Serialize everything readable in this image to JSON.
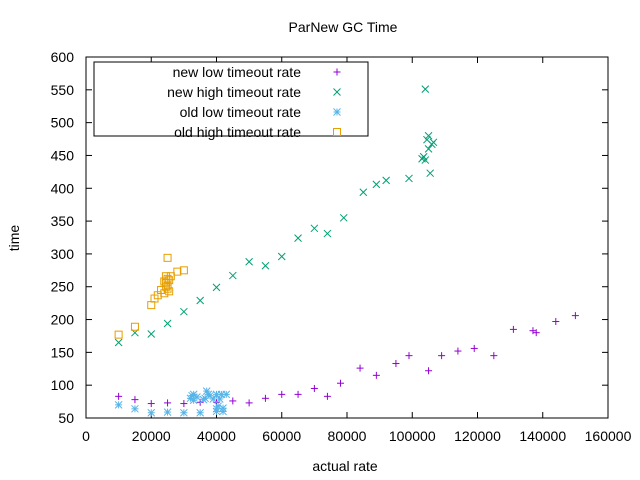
{
  "chart_data": {
    "type": "scatter",
    "title": "ParNew GC Time",
    "xlabel": "actual rate",
    "ylabel": "time",
    "xlim": [
      0,
      160000
    ],
    "ylim": [
      50,
      600
    ],
    "xticks": [
      0,
      20000,
      40000,
      60000,
      80000,
      100000,
      120000,
      140000,
      160000
    ],
    "yticks": [
      50,
      100,
      150,
      200,
      250,
      300,
      350,
      400,
      450,
      500,
      550,
      600
    ],
    "grid": false,
    "legend_position": "top-left",
    "series": [
      {
        "name": "new low timeout rate",
        "marker": "plus",
        "color": "#9400d3",
        "points": [
          [
            10000,
            83
          ],
          [
            15000,
            78
          ],
          [
            20000,
            72
          ],
          [
            25000,
            73
          ],
          [
            30000,
            72
          ],
          [
            35000,
            74
          ],
          [
            40000,
            74
          ],
          [
            45000,
            76
          ],
          [
            50000,
            73
          ],
          [
            55000,
            80
          ],
          [
            60000,
            86
          ],
          [
            65000,
            86
          ],
          [
            70000,
            95
          ],
          [
            74000,
            83
          ],
          [
            78000,
            103
          ],
          [
            84000,
            126
          ],
          [
            89000,
            115
          ],
          [
            95000,
            133
          ],
          [
            99000,
            145
          ],
          [
            105000,
            122
          ],
          [
            109000,
            145
          ],
          [
            114000,
            152
          ],
          [
            119000,
            156
          ],
          [
            125000,
            145
          ],
          [
            131000,
            185
          ],
          [
            137000,
            183
          ],
          [
            138000,
            180
          ],
          [
            144000,
            197
          ],
          [
            150000,
            206
          ]
        ]
      },
      {
        "name": "new high timeout rate",
        "marker": "cross",
        "color": "#009e73",
        "points": [
          [
            10000,
            165
          ],
          [
            15000,
            180
          ],
          [
            20000,
            178
          ],
          [
            25000,
            194
          ],
          [
            30000,
            212
          ],
          [
            35000,
            229
          ],
          [
            40000,
            249
          ],
          [
            45000,
            267
          ],
          [
            50000,
            288
          ],
          [
            55000,
            282
          ],
          [
            60000,
            296
          ],
          [
            65000,
            324
          ],
          [
            70000,
            339
          ],
          [
            74000,
            331
          ],
          [
            79000,
            355
          ],
          [
            85000,
            394
          ],
          [
            89000,
            406
          ],
          [
            92000,
            412
          ],
          [
            99000,
            415
          ],
          [
            103000,
            445
          ],
          [
            103500,
            448
          ],
          [
            104000,
            443
          ],
          [
            104500,
            474
          ],
          [
            105000,
            480
          ],
          [
            105500,
            423
          ],
          [
            106000,
            467
          ],
          [
            106500,
            470
          ],
          [
            105000,
            460
          ],
          [
            104000,
            551
          ]
        ]
      },
      {
        "name": "old low timeout rate",
        "marker": "star",
        "color": "#56b4e9",
        "points": [
          [
            10000,
            70
          ],
          [
            15000,
            64
          ],
          [
            20000,
            58
          ],
          [
            25000,
            59
          ],
          [
            30000,
            58
          ],
          [
            32000,
            80
          ],
          [
            32500,
            84
          ],
          [
            33000,
            86
          ],
          [
            33000,
            77
          ],
          [
            34000,
            82
          ],
          [
            35000,
            58
          ],
          [
            36000,
            78
          ],
          [
            36500,
            80
          ],
          [
            37000,
            91
          ],
          [
            37500,
            86
          ],
          [
            38000,
            84
          ],
          [
            39000,
            79
          ],
          [
            40000,
            60
          ],
          [
            40000,
            64
          ],
          [
            40000,
            86
          ],
          [
            41000,
            79
          ],
          [
            41500,
            86
          ],
          [
            42000,
            60
          ],
          [
            42000,
            65
          ],
          [
            43000,
            86
          ],
          [
            40500,
            68
          ]
        ]
      },
      {
        "name": "old high timeout rate",
        "marker": "square",
        "color": "#e69f00",
        "points": [
          [
            10000,
            177
          ],
          [
            15000,
            189
          ],
          [
            20000,
            222
          ],
          [
            21000,
            232
          ],
          [
            22000,
            237
          ],
          [
            23000,
            245
          ],
          [
            24000,
            240
          ],
          [
            24500,
            250
          ],
          [
            24500,
            256
          ],
          [
            25000,
            247
          ],
          [
            25000,
            252
          ],
          [
            25000,
            262
          ],
          [
            25000,
            294
          ],
          [
            25500,
            243
          ],
          [
            25500,
            260
          ],
          [
            26000,
            266
          ],
          [
            28000,
            273
          ],
          [
            30000,
            275
          ],
          [
            24000,
            258
          ],
          [
            24500,
            266
          ]
        ]
      }
    ]
  }
}
